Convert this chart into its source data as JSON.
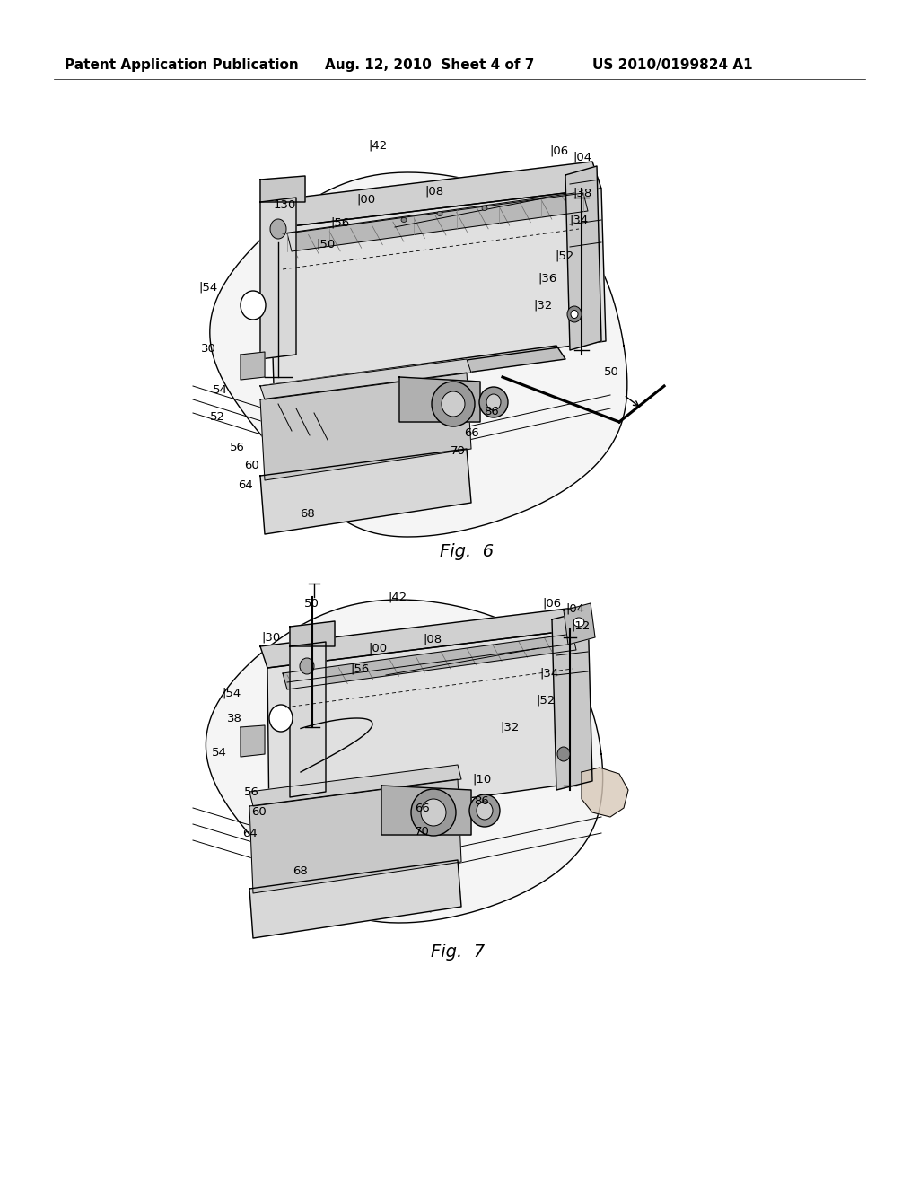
{
  "background_color": "#ffffff",
  "header_left": "Patent Application Publication",
  "header_center": "Aug. 12, 2010  Sheet 4 of 7",
  "header_right": "US 2010/0199824 A1",
  "fig6_label": "Fig.  6",
  "fig7_label": "Fig.  7",
  "page_width": 10.24,
  "page_height": 13.2,
  "dpi": 100,
  "line_color": "#000000",
  "fig6_labels": [
    [
      "130",
      305,
      228,
      "left"
    ],
    [
      "|42",
      410,
      162,
      "left"
    ],
    [
      "|06",
      612,
      168,
      "left"
    ],
    [
      "|04",
      638,
      175,
      "left"
    ],
    [
      "|00",
      397,
      222,
      "left"
    ],
    [
      "|08",
      473,
      213,
      "left"
    ],
    [
      "|56",
      368,
      248,
      "left"
    ],
    [
      "|38",
      638,
      215,
      "left"
    ],
    [
      "|50",
      352,
      272,
      "left"
    ],
    [
      "|34",
      634,
      245,
      "left"
    ],
    [
      "|54",
      221,
      320,
      "left"
    ],
    [
      "|52",
      618,
      285,
      "left"
    ],
    [
      "|36",
      599,
      310,
      "left"
    ],
    [
      "30",
      224,
      388,
      "left"
    ],
    [
      "|32",
      594,
      340,
      "left"
    ],
    [
      "50",
      673,
      415,
      "left"
    ],
    [
      "54",
      237,
      435,
      "left"
    ],
    [
      "86",
      539,
      458,
      "left"
    ],
    [
      "52",
      234,
      465,
      "left"
    ],
    [
      "66",
      517,
      483,
      "left"
    ],
    [
      "56",
      256,
      499,
      "left"
    ],
    [
      "60",
      272,
      519,
      "left"
    ],
    [
      "70",
      502,
      502,
      "left"
    ],
    [
      "64",
      265,
      541,
      "left"
    ],
    [
      "68",
      334,
      572,
      "left"
    ]
  ],
  "fig7_labels": [
    [
      "50",
      339,
      673,
      "left"
    ],
    [
      "|42",
      432,
      665,
      "left"
    ],
    [
      "|06",
      604,
      672,
      "left"
    ],
    [
      "|04",
      630,
      678,
      "left"
    ],
    [
      "|30",
      291,
      710,
      "left"
    ],
    [
      "|00",
      410,
      722,
      "left"
    ],
    [
      "|08",
      471,
      712,
      "left"
    ],
    [
      "|12",
      636,
      697,
      "left"
    ],
    [
      "|56",
      390,
      745,
      "left"
    ],
    [
      "|54",
      247,
      772,
      "left"
    ],
    [
      "|34",
      601,
      750,
      "left"
    ],
    [
      "38",
      253,
      800,
      "left"
    ],
    [
      "|52",
      597,
      780,
      "left"
    ],
    [
      "54",
      236,
      838,
      "left"
    ],
    [
      "|32",
      557,
      810,
      "left"
    ],
    [
      "|10",
      526,
      868,
      "left"
    ],
    [
      "56",
      272,
      882,
      "left"
    ],
    [
      "86",
      528,
      893,
      "left"
    ],
    [
      "60",
      280,
      905,
      "left"
    ],
    [
      "66",
      462,
      900,
      "left"
    ],
    [
      "64",
      270,
      928,
      "left"
    ],
    [
      "70",
      462,
      926,
      "left"
    ],
    [
      "68",
      326,
      970,
      "left"
    ]
  ]
}
